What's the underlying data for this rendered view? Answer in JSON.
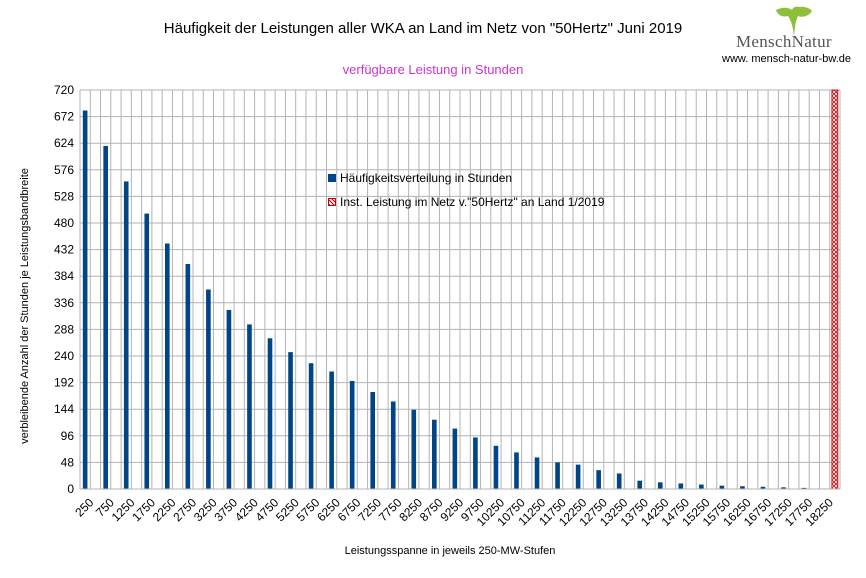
{
  "chart_data": {
    "type": "bar",
    "title": "Häufigkeit der Leistungen aller WKA an Land im Netz von \"50Hertz\" Juni 2019",
    "subtitle": "verfügbare Leistung in Stunden",
    "xlabel": "Leistungsspanne in jeweils 250-MW-Stufen",
    "ylabel": "verbleibende Anzahl der Stunden je Leistungsbandbreite",
    "ylim": [
      0,
      720
    ],
    "yticks": [
      0,
      48,
      96,
      144,
      192,
      240,
      288,
      336,
      384,
      432,
      480,
      528,
      576,
      624,
      672,
      720
    ],
    "x_tick_labels": [
      "250",
      "750",
      "1250",
      "1750",
      "2250",
      "2750",
      "3250",
      "3750",
      "4250",
      "4750",
      "5250",
      "5750",
      "6250",
      "6750",
      "7250",
      "7750",
      "8250",
      "8750",
      "9250",
      "9750",
      "10250",
      "10750",
      "11250",
      "11750",
      "12250",
      "12750",
      "13250",
      "13750",
      "14250",
      "14750",
      "15250",
      "15750",
      "16250",
      "16750",
      "17250",
      "17750",
      "18250"
    ],
    "grid": true,
    "categories_count": 74,
    "series": [
      {
        "name": "Häufigkeitsverteilung in Stunden",
        "color": "#004586",
        "values": [
          683,
          619,
          555,
          497,
          443,
          406,
          360,
          323,
          297,
          272,
          247,
          227,
          212,
          195,
          175,
          158,
          143,
          125,
          109,
          93,
          78,
          66,
          57,
          48,
          44,
          34,
          28,
          15,
          12,
          10,
          8,
          6,
          5,
          4,
          3,
          2,
          1
        ]
      },
      {
        "name": "Inst. Leistung im Netz v.\"50Hertz\" an Land 1/2019",
        "color": "#c00000",
        "pattern": "crosshatch",
        "value": 720,
        "category_index": 73
      }
    ],
    "legend_position": "center"
  },
  "logo": {
    "text": "MenschNatur",
    "url": "www. mensch-natur-bw.de",
    "leaf_color": "#8dbf3a"
  }
}
